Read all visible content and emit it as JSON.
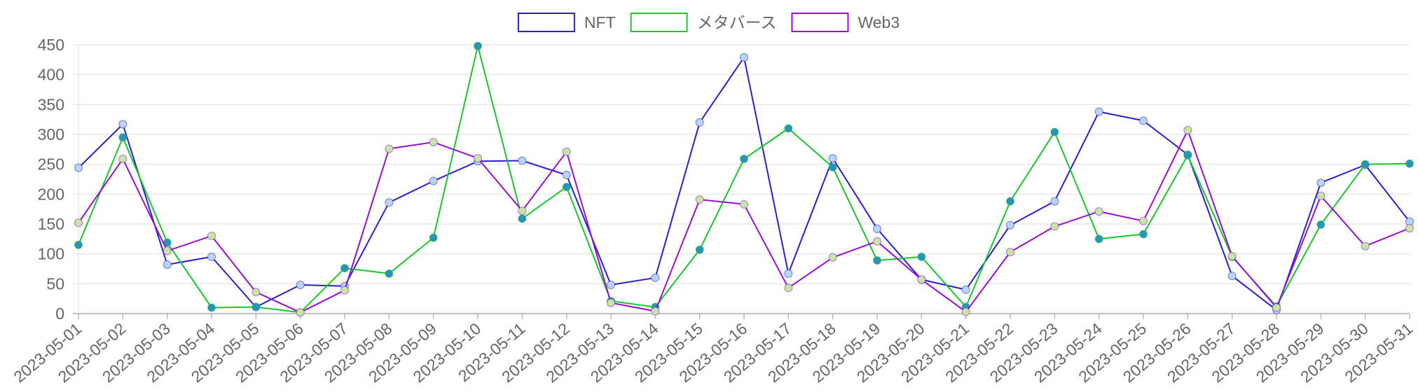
{
  "chart_data": {
    "type": "line",
    "title": "",
    "xlabel": "",
    "ylabel": "",
    "ylim": [
      0,
      450
    ],
    "yticks": [
      0,
      50,
      100,
      150,
      200,
      250,
      300,
      350,
      400,
      450
    ],
    "grid": true,
    "legend_position": "top-center",
    "categories": [
      "2023-05-01",
      "2023-05-02",
      "2023-05-03",
      "2023-05-04",
      "2023-05-05",
      "2023-05-06",
      "2023-05-07",
      "2023-05-08",
      "2023-05-09",
      "2023-05-10",
      "2023-05-11",
      "2023-05-12",
      "2023-05-13",
      "2023-05-14",
      "2023-05-15",
      "2023-05-16",
      "2023-05-17",
      "2023-05-18",
      "2023-05-19",
      "2023-05-20",
      "2023-05-21",
      "2023-05-22",
      "2023-05-23",
      "2023-05-24",
      "2023-05-25",
      "2023-05-26",
      "2023-05-27",
      "2023-05-28",
      "2023-05-29",
      "2023-05-30",
      "2023-05-31"
    ],
    "series": [
      {
        "name": "NFT",
        "color": "#2a1fd0",
        "point_color": "#b9d5f6",
        "values": [
          244,
          317,
          82,
          95,
          11,
          48,
          46,
          186,
          222,
          255,
          256,
          232,
          48,
          60,
          320,
          429,
          67,
          260,
          142,
          57,
          40,
          148,
          188,
          338,
          323,
          266,
          63,
          6,
          219,
          249,
          154
        ]
      },
      {
        "name": "メタバース",
        "color": "#19c630",
        "point_color": "#2a93b8",
        "values": [
          115,
          295,
          119,
          10,
          11,
          2,
          76,
          67,
          127,
          448,
          159,
          212,
          21,
          11,
          107,
          259,
          310,
          245,
          89,
          95,
          11,
          188,
          304,
          125,
          133,
          265,
          95,
          12,
          149,
          250,
          251
        ]
      },
      {
        "name": "Web3",
        "color": "#9410d4",
        "point_color": "#c6e6a3",
        "values": [
          152,
          259,
          105,
          130,
          36,
          2,
          39,
          276,
          287,
          260,
          172,
          271,
          18,
          4,
          191,
          183,
          43,
          94,
          121,
          57,
          3,
          103,
          146,
          171,
          155,
          307,
          96,
          10,
          197,
          113,
          143
        ]
      }
    ]
  }
}
